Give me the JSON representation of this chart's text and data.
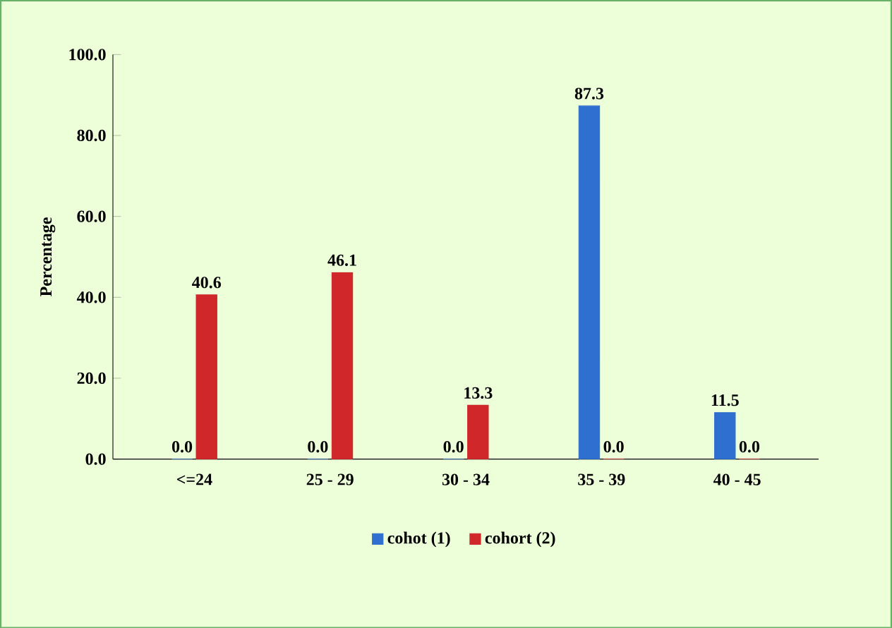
{
  "chart_data": {
    "type": "bar",
    "categories": [
      "<=24",
      "25 - 29",
      "30 - 34",
      "35 - 39",
      "40 - 45"
    ],
    "series": [
      {
        "name": "cohot (1)",
        "color": "#2e6fcf",
        "values": [
          0.0,
          0.0,
          0.0,
          87.3,
          11.5
        ],
        "value_labels": [
          "0.0",
          "0.0",
          "0.0",
          "87.3",
          "11.5"
        ]
      },
      {
        "name": "cohort (2)",
        "color": "#d0282a",
        "values": [
          40.6,
          46.1,
          13.3,
          0.0,
          0.0
        ],
        "value_labels": [
          "40.6",
          "46.1",
          "13.3",
          "0.0",
          "0.0"
        ]
      }
    ],
    "ylabel": "Percentage",
    "ylim": [
      0,
      100
    ],
    "yticks": [
      {
        "value": 0,
        "label": "0.0"
      },
      {
        "value": 20,
        "label": "20.0"
      },
      {
        "value": 40,
        "label": "40.0"
      },
      {
        "value": 60,
        "label": "60.0"
      },
      {
        "value": 80,
        "label": "80.0"
      },
      {
        "value": 100,
        "label": "100.0"
      }
    ],
    "legend": "bottom",
    "grid": false
  }
}
